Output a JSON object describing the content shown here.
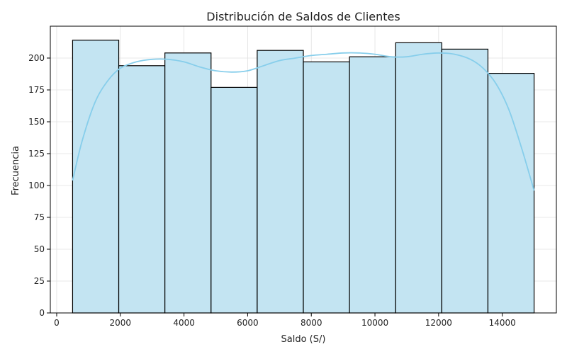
{
  "chart_data": {
    "type": "bar",
    "title": "Distribución de Saldos de Clientes",
    "xlabel": "Saldo (S/)",
    "ylabel": "Frecuencia",
    "xlim": [
      -200,
      15700
    ],
    "ylim": [
      0,
      225
    ],
    "xticks": [
      0,
      2000,
      4000,
      6000,
      8000,
      10000,
      12000,
      14000
    ],
    "yticks": [
      0,
      25,
      50,
      75,
      100,
      125,
      150,
      175,
      200
    ],
    "grid": true,
    "bin_edges": [
      500,
      1950,
      3400,
      4850,
      6300,
      7750,
      9200,
      10650,
      12100,
      13550,
      15000
    ],
    "values": [
      214,
      194,
      204,
      177,
      206,
      197,
      201,
      212,
      207,
      188
    ],
    "kde": {
      "x": [
        500,
        800,
        1200,
        1600,
        2000,
        2500,
        3000,
        3500,
        4000,
        4500,
        5000,
        5500,
        6000,
        6500,
        7000,
        7500,
        8000,
        8500,
        9000,
        9500,
        10000,
        10500,
        11000,
        11500,
        12000,
        12500,
        13000,
        13400,
        13800,
        14200,
        14600,
        15000
      ],
      "y": [
        104,
        135,
        165,
        182,
        192,
        197,
        199,
        199,
        197,
        193,
        190,
        189,
        190,
        194,
        198,
        200,
        202,
        203,
        204,
        204,
        203,
        201,
        201,
        203,
        204,
        203,
        199,
        192,
        180,
        160,
        130,
        96
      ]
    },
    "colors": {
      "bar_fill": "#c3e4f2",
      "bar_edge": "#000000",
      "kde_line": "#87ceeb",
      "grid": "#e0e0e0"
    }
  }
}
